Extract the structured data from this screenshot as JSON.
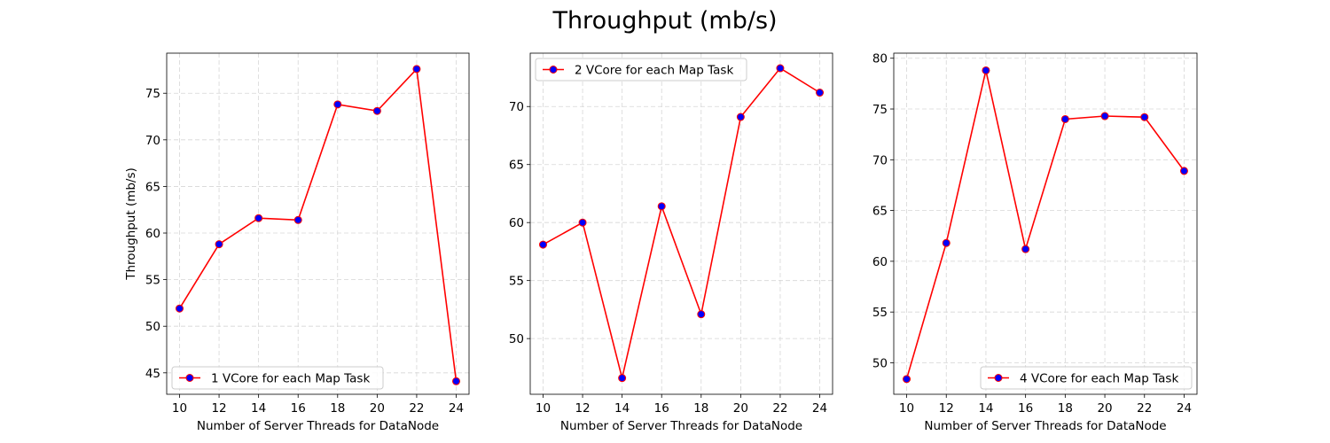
{
  "figure": {
    "title": "Throughput (mb/s)"
  },
  "chart_data": [
    {
      "type": "line",
      "xlabel": "Number of Server Threads for DataNode",
      "ylabel": "Throughput (mb/s)",
      "x": [
        10,
        12,
        14,
        16,
        18,
        20,
        22,
        24
      ],
      "xticks": [
        10,
        12,
        14,
        16,
        18,
        20,
        22,
        24
      ],
      "xlim": [
        9.35,
        24.65
      ],
      "yticks": [
        45,
        50,
        55,
        60,
        65,
        70,
        75
      ],
      "ylim": [
        42.7,
        79.3
      ],
      "grid": true,
      "legend_position": "lower-left",
      "series": [
        {
          "name": "1 VCore for each Map Task",
          "values": [
            51.9,
            58.8,
            61.6,
            61.4,
            73.8,
            73.1,
            77.6,
            44.1
          ],
          "line_color": "#ff0000",
          "marker_color": "#0000ff"
        }
      ]
    },
    {
      "type": "line",
      "xlabel": "Number of Server Threads for DataNode",
      "ylabel": "",
      "x": [
        10,
        12,
        14,
        16,
        18,
        20,
        22,
        24
      ],
      "xticks": [
        10,
        12,
        14,
        16,
        18,
        20,
        22,
        24
      ],
      "xlim": [
        9.35,
        24.65
      ],
      "yticks": [
        50,
        55,
        60,
        65,
        70
      ],
      "ylim": [
        45.2,
        74.6
      ],
      "grid": true,
      "legend_position": "upper-left",
      "series": [
        {
          "name": "2 VCore for each Map Task",
          "values": [
            58.1,
            60.0,
            46.6,
            61.4,
            52.1,
            69.1,
            73.3,
            71.2
          ],
          "line_color": "#ff0000",
          "marker_color": "#0000ff"
        }
      ]
    },
    {
      "type": "line",
      "xlabel": "Number of Server Threads for DataNode",
      "ylabel": "",
      "x": [
        10,
        12,
        14,
        16,
        18,
        20,
        22,
        24
      ],
      "xticks": [
        10,
        12,
        14,
        16,
        18,
        20,
        22,
        24
      ],
      "xlim": [
        9.35,
        24.65
      ],
      "yticks": [
        50,
        55,
        60,
        65,
        70,
        75,
        80
      ],
      "ylim": [
        46.9,
        80.5
      ],
      "grid": true,
      "legend_position": "lower-right",
      "series": [
        {
          "name": "4 VCore for each Map Task",
          "values": [
            48.4,
            61.8,
            78.8,
            61.2,
            74.0,
            74.3,
            74.2,
            68.9
          ],
          "line_color": "#ff0000",
          "marker_color": "#0000ff"
        }
      ]
    }
  ]
}
